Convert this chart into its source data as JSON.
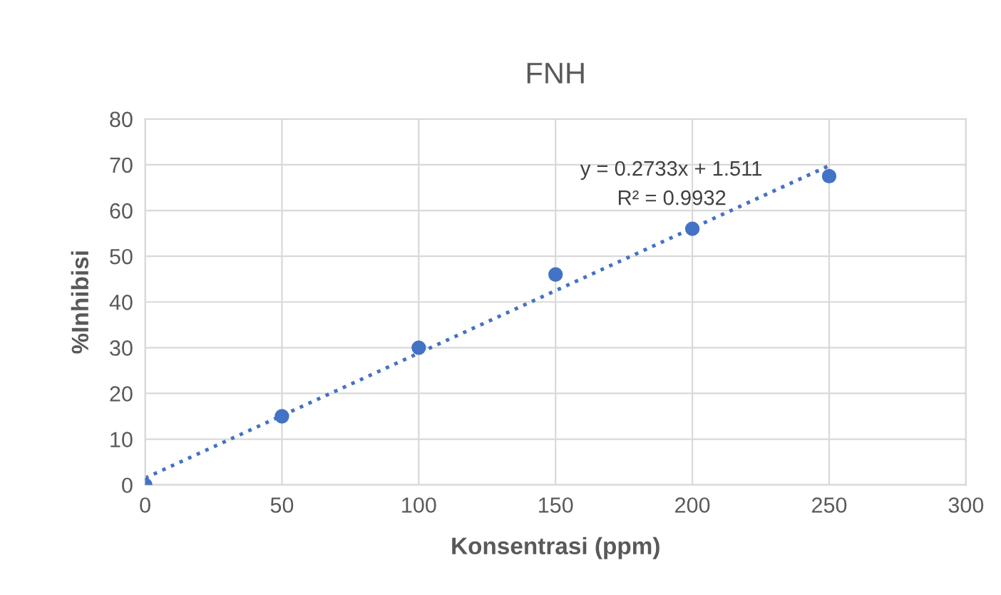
{
  "chart_data": {
    "type": "scatter",
    "title": "FNH",
    "xlabel": "Konsentrasi (ppm)",
    "ylabel": "%Inhibisi",
    "xlim": [
      0,
      300
    ],
    "xticks": [
      0,
      50,
      100,
      150,
      200,
      250,
      300
    ],
    "ylim": [
      0,
      80
    ],
    "yticks": [
      0,
      10,
      20,
      30,
      40,
      50,
      60,
      70,
      80
    ],
    "grid": true,
    "series": [
      {
        "marker": "circle",
        "color": "#4472c4",
        "x": [
          0,
          50,
          100,
          150,
          200,
          250
        ],
        "values": [
          0,
          15,
          30,
          46,
          56,
          67.5
        ]
      },
      {
        "type": "line",
        "marker": "none",
        "color": "#4472c4",
        "line_style": "dotted",
        "x": [
          0,
          250
        ],
        "values": [
          1.5,
          69.8
        ]
      }
    ],
    "annotations": [
      "y = 0.2733x + 1.511",
      "R² = 0.9932"
    ]
  }
}
